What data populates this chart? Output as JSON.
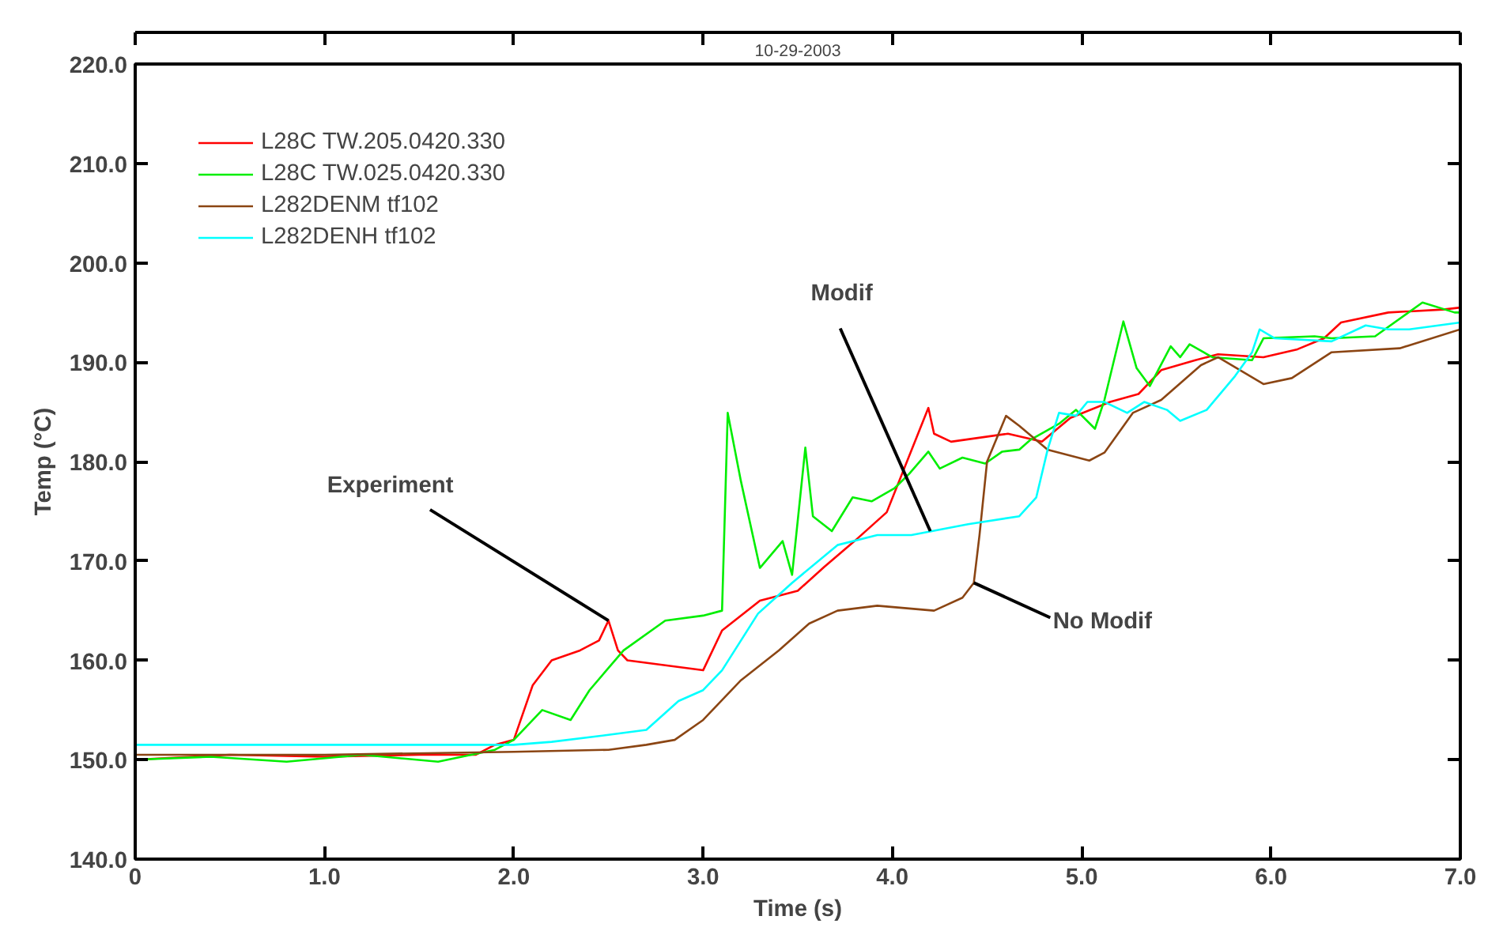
{
  "chart_data": {
    "type": "line",
    "title": "10-29-2003",
    "xlabel": "Time (s)",
    "ylabel": "Temp (°C)",
    "xlim": [
      0,
      7
    ],
    "ylim": [
      140,
      220
    ],
    "xticks": [
      {
        "value": 0,
        "label": "0"
      },
      {
        "value": 1,
        "label": "1.0"
      },
      {
        "value": 2,
        "label": "2.0"
      },
      {
        "value": 3,
        "label": "3.0"
      },
      {
        "value": 4,
        "label": "4.0"
      },
      {
        "value": 5,
        "label": "5.0"
      },
      {
        "value": 6,
        "label": "6.0"
      },
      {
        "value": 7,
        "label": "7.0"
      }
    ],
    "yticks": [
      {
        "value": 140,
        "label": "140.0"
      },
      {
        "value": 150,
        "label": "150.0"
      },
      {
        "value": 160,
        "label": "160.0"
      },
      {
        "value": 170,
        "label": "170.0"
      },
      {
        "value": 180,
        "label": "180.0"
      },
      {
        "value": 190,
        "label": "190.0"
      },
      {
        "value": 200,
        "label": "200.0"
      },
      {
        "value": 210,
        "label": "210.0"
      },
      {
        "value": 220,
        "label": "220.0"
      }
    ],
    "grid": false,
    "legend": "top left",
    "line_style": "solid",
    "series": [
      {
        "name": "L28C TW.205.0420.330",
        "color": "#ff0000",
        "x": [
          0,
          0.5,
          1.0,
          1.5,
          1.8,
          1.9,
          2.0,
          2.1,
          2.2,
          2.35,
          2.45,
          2.5,
          2.55,
          2.6,
          2.8,
          3.0,
          3.1,
          3.3,
          3.5,
          3.64,
          3.8,
          3.97,
          4.19,
          4.22,
          4.31,
          4.61,
          4.79,
          4.94,
          5.15,
          5.3,
          5.42,
          5.6,
          5.72,
          5.96,
          6.14,
          6.28,
          6.37,
          6.62,
          6.91,
          7.0
        ],
        "values": [
          150,
          150.5,
          150.3,
          150.5,
          150.5,
          151.5,
          152,
          157.5,
          160,
          161,
          162,
          164,
          161,
          160,
          159.5,
          159,
          163,
          166,
          167,
          169.4,
          172,
          174.9,
          185.4,
          182.8,
          182,
          182.8,
          182,
          184.4,
          186,
          186.8,
          189.2,
          190.2,
          190.8,
          190.5,
          191.3,
          192.4,
          194,
          195,
          195.3,
          195.5
        ]
      },
      {
        "name": "L28C TW.025.0420.330",
        "color": "#00ee00",
        "x": [
          0,
          0.4,
          0.8,
          1.2,
          1.6,
          1.9,
          2.0,
          2.15,
          2.3,
          2.4,
          2.58,
          2.8,
          3.0,
          3.1,
          3.13,
          3.2,
          3.3,
          3.42,
          3.47,
          3.54,
          3.58,
          3.68,
          3.79,
          3.89,
          4.01,
          4.09,
          4.19,
          4.25,
          4.37,
          4.49,
          4.58,
          4.67,
          4.73,
          4.88,
          4.97,
          5.07,
          5.12,
          5.22,
          5.29,
          5.36,
          5.47,
          5.52,
          5.57,
          5.69,
          5.9,
          5.96,
          6.23,
          6.32,
          6.55,
          6.8,
          6.97,
          7.0
        ],
        "values": [
          150,
          150.3,
          149.8,
          150.5,
          149.8,
          151,
          152,
          155,
          154,
          157,
          161,
          164,
          164.5,
          165,
          184.9,
          178,
          169.3,
          172,
          168.6,
          181.4,
          174.5,
          173,
          176.4,
          176,
          177.3,
          178.8,
          181,
          179.3,
          180.4,
          179.8,
          181,
          181.2,
          182.2,
          183.8,
          185.2,
          183.3,
          186.2,
          194.1,
          189.4,
          187.6,
          191.6,
          190.5,
          191.8,
          190.5,
          190.2,
          192.4,
          192.6,
          192.4,
          192.6,
          196,
          195,
          195
        ]
      },
      {
        "name": "L282DENM tf102",
        "color": "#8b4513",
        "x": [
          0,
          1.0,
          2.0,
          2.5,
          2.7,
          2.85,
          3.0,
          3.2,
          3.4,
          3.56,
          3.71,
          3.92,
          4.22,
          4.37,
          4.43,
          4.46,
          4.5,
          4.6,
          4.67,
          4.82,
          5.04,
          5.12,
          5.27,
          5.42,
          5.63,
          5.72,
          5.96,
          6.11,
          6.32,
          6.68,
          7.0
        ],
        "values": [
          150.5,
          150.5,
          150.8,
          151,
          151.5,
          152,
          154,
          158,
          161,
          163.7,
          165,
          165.5,
          165,
          166.3,
          167.8,
          172.6,
          180,
          184.6,
          183.6,
          181.2,
          180.1,
          180.9,
          184.9,
          186.2,
          189.7,
          190.5,
          187.8,
          188.4,
          191,
          191.4,
          193.3
        ]
      },
      {
        "name": "L282DENH tf102",
        "color": "#00ffff",
        "x": [
          0,
          1.0,
          2.0,
          2.2,
          2.5,
          2.7,
          2.87,
          3.0,
          3.1,
          3.29,
          3.47,
          3.71,
          3.92,
          4.1,
          4.4,
          4.67,
          4.76,
          4.82,
          4.88,
          4.97,
          5.03,
          5.12,
          5.24,
          5.33,
          5.45,
          5.52,
          5.66,
          5.81,
          5.9,
          5.94,
          6.02,
          6.32,
          6.5,
          6.62,
          6.73,
          7.0
        ],
        "values": [
          151.5,
          151.5,
          151.5,
          151.8,
          152.5,
          153,
          155.9,
          157,
          159,
          164.7,
          167.8,
          171.6,
          172.6,
          172.6,
          173.7,
          174.5,
          176.4,
          181.2,
          184.9,
          184.6,
          186,
          186,
          184.9,
          186,
          185.2,
          184.1,
          185.2,
          188.6,
          191,
          193.3,
          192.4,
          192.1,
          193.7,
          193.3,
          193.3,
          194
        ]
      }
    ],
    "annotations": [
      {
        "text": "Experiment",
        "x": 2.5,
        "y": 164
      },
      {
        "text": "Modif",
        "x": 4.2,
        "y": 173
      },
      {
        "text": "No Modif",
        "x": 4.43,
        "y": 167.8
      }
    ]
  }
}
